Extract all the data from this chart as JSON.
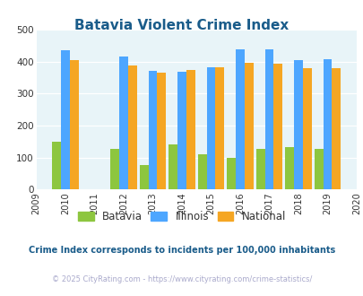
{
  "title": "Batavia Violent Crime Index",
  "title_color": "#1a5c8a",
  "years": [
    2010,
    2012,
    2013,
    2014,
    2015,
    2016,
    2017,
    2018,
    2019
  ],
  "batavia": [
    148,
    128,
    75,
    140,
    110,
    100,
    128,
    133,
    128
  ],
  "illinois": [
    435,
    415,
    372,
    369,
    383,
    438,
    438,
    405,
    408
  ],
  "national": [
    405,
    387,
    365,
    375,
    383,
    397,
    394,
    379,
    379
  ],
  "batavia_color": "#8dc63f",
  "illinois_color": "#4da6ff",
  "national_color": "#f5a623",
  "xlim": [
    2009,
    2020
  ],
  "ylim": [
    0,
    500
  ],
  "yticks": [
    0,
    100,
    200,
    300,
    400,
    500
  ],
  "xticks": [
    2009,
    2010,
    2011,
    2012,
    2013,
    2014,
    2015,
    2016,
    2017,
    2018,
    2019,
    2020
  ],
  "bg_color": "#e8f4f8",
  "legend_labels": [
    "Batavia",
    "Illinois",
    "National"
  ],
  "footnote": "Crime Index corresponds to incidents per 100,000 inhabitants",
  "footnote_color": "#1a5c8a",
  "copyright": "© 2025 CityRating.com - https://www.cityrating.com/crime-statistics/",
  "copyright_color": "#aaaacc",
  "bar_width": 0.3
}
